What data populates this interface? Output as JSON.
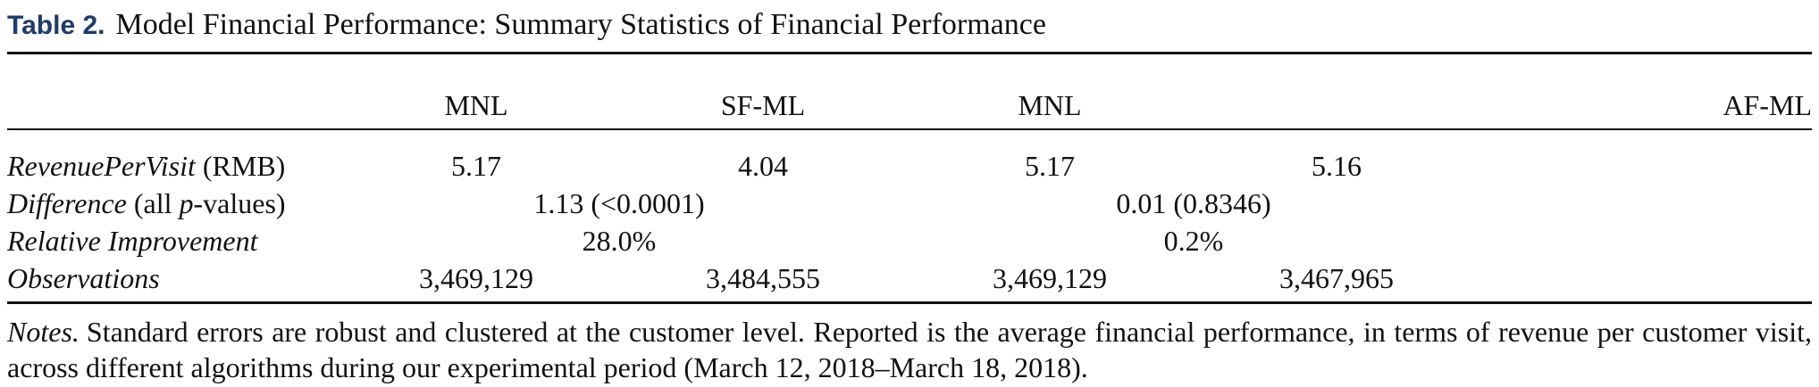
{
  "caption": {
    "label": "Table 2.",
    "title": "Model Financial Performance: Summary Statistics of Financial Performance"
  },
  "table": {
    "headers": [
      "MNL",
      "SF-ML",
      "MNL",
      "AF-ML"
    ],
    "rows": [
      {
        "label_italic": "RevenuePerVisit",
        "label_rest": " (RMB)",
        "values": [
          "5.17",
          "4.04",
          "5.17",
          "5.16"
        ]
      },
      {
        "label_italic": "Difference",
        "label_rest_a": " (all ",
        "label_p": "p",
        "label_rest_b": "-values)",
        "comparisons": [
          "1.13 (<0.0001)",
          "0.01 (0.8346)"
        ]
      },
      {
        "label_italic": "Relative Improvement",
        "comparisons": [
          "28.0%",
          "0.2%"
        ]
      },
      {
        "label_italic": "Observations",
        "values": [
          "3,469,129",
          "3,484,555",
          "3,469,129",
          "3,467,965"
        ]
      }
    ]
  },
  "notes": {
    "label": "Notes.",
    "text": "Standard errors are robust and clustered at the customer level. Reported is the average financial performance, in terms of revenue per customer visit, across different algorithms during our experimental period (March 12, 2018–March 18, 2018)."
  }
}
